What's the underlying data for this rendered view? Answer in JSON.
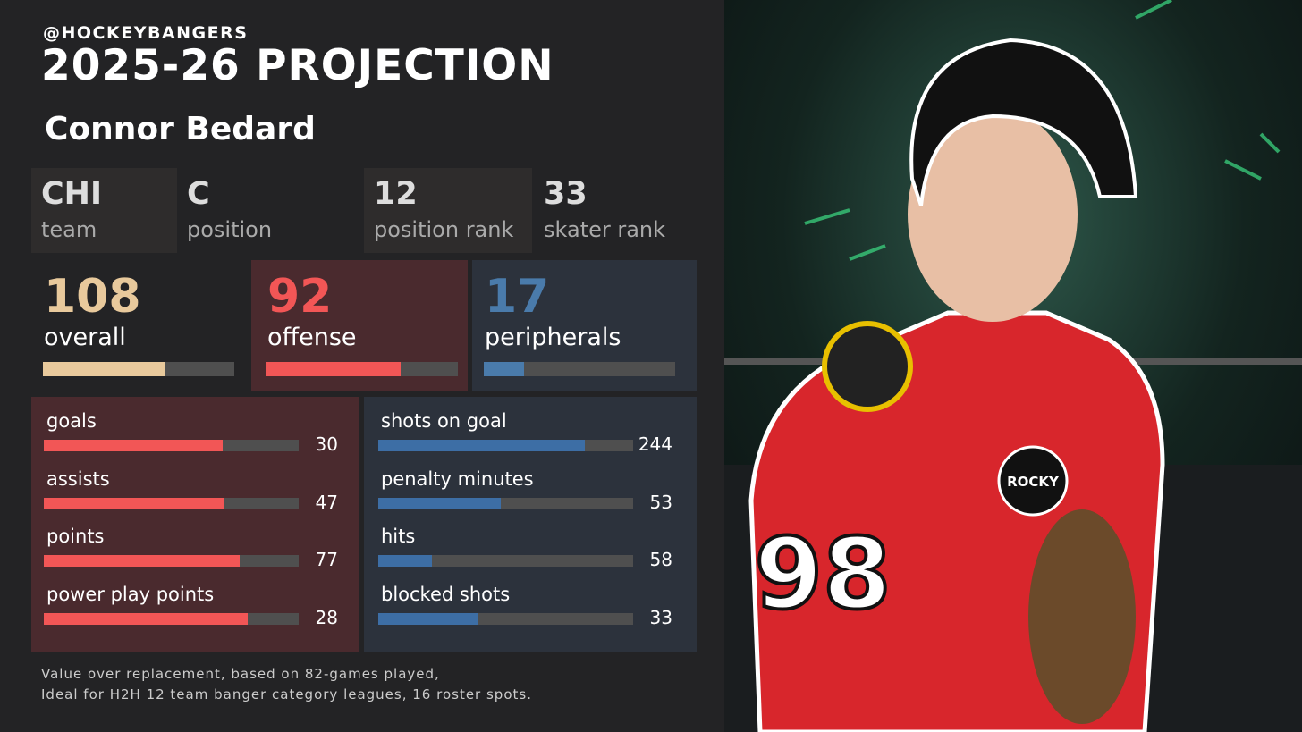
{
  "header": {
    "handle": "@HOCKEYBANGERS",
    "title": "2025-26 PROJECTION",
    "player": "Connor Bedard"
  },
  "info": [
    {
      "value": "CHI",
      "label": "team"
    },
    {
      "value": "C",
      "label": "position"
    },
    {
      "value": 12,
      "label": "position rank"
    },
    {
      "value": 33,
      "label": "skater rank"
    }
  ],
  "scores": [
    {
      "value": 108,
      "label": "overall",
      "bar": 64
    },
    {
      "value": 92,
      "label": "offense",
      "bar": 70
    },
    {
      "value": 17,
      "label": "peripherals",
      "bar": 21
    }
  ],
  "stats": {
    "offense": [
      {
        "label": "goals",
        "value": 30,
        "bar": 70
      },
      {
        "label": "assists",
        "value": 47,
        "bar": 71
      },
      {
        "label": "points",
        "value": 77,
        "bar": 77
      },
      {
        "label": "power play points",
        "value": 28,
        "bar": 80
      }
    ],
    "peripherals": [
      {
        "label": "shots on goal",
        "value": 244,
        "bar": 81
      },
      {
        "label": "penalty minutes",
        "value": 53,
        "bar": 48
      },
      {
        "label": "hits",
        "value": 58,
        "bar": 21
      },
      {
        "label": "blocked shots",
        "value": 33,
        "bar": 39
      }
    ]
  },
  "footer": [
    "Value over replacement, based on 82-games played,",
    "Ideal for H2H 12 team banger category leagues, 16 roster spots."
  ],
  "photo": {
    "number": "98",
    "patch": "ROCKY"
  }
}
